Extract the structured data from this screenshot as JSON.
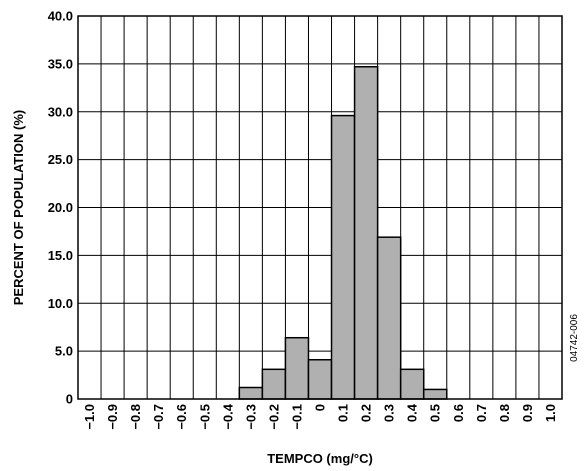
{
  "chart_data": {
    "type": "bar",
    "title": "",
    "xlabel": "TEMPCO (mg/°C)",
    "ylabel": "PERCENT OF POPULATION (%)",
    "ylim": [
      0,
      40
    ],
    "y_ticks": [
      "0",
      "5.0",
      "10.0",
      "15.0",
      "20.0",
      "25.0",
      "30.0",
      "35.0",
      "40.0"
    ],
    "categories": [
      "−1.0",
      "−0.9",
      "−0.8",
      "−0.7",
      "−0.6",
      "−0.5",
      "−0.4",
      "−0.3",
      "−0.2",
      "−0.1",
      "0",
      "0.1",
      "0.2",
      "0.3",
      "0.4",
      "0.5",
      "0.6",
      "0.7",
      "0.8",
      "0.9",
      "1.0"
    ],
    "values": [
      0,
      0,
      0,
      0,
      0,
      0,
      0,
      1.2,
      3.1,
      6.4,
      4.1,
      29.6,
      34.7,
      16.9,
      3.1,
      1.0,
      0,
      0,
      0,
      0,
      0
    ],
    "grid": true,
    "bar_color": "#b0b0b0",
    "side_note": "04742-006"
  }
}
